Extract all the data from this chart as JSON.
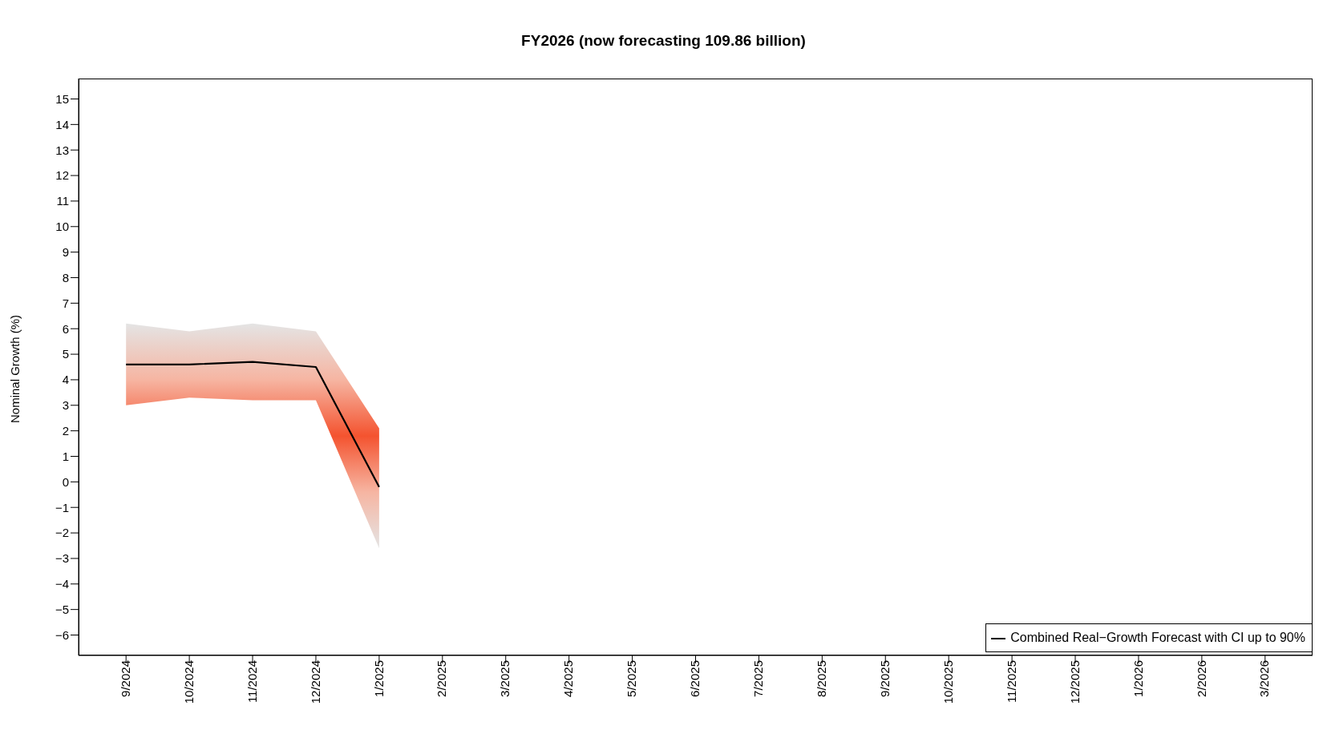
{
  "chart_data": {
    "type": "line",
    "title": "FY2026 (now forecasting 109.86 billion)",
    "ylabel": "Nominal Growth (%)",
    "categories": [
      "9/2024",
      "10/2024",
      "11/2024",
      "12/2024",
      "1/2025",
      "2/2025",
      "3/2025",
      "4/2025",
      "5/2025",
      "6/2025",
      "7/2025",
      "8/2025",
      "9/2025",
      "10/2025",
      "11/2025",
      "12/2025",
      "1/2026",
      "2/2026",
      "3/2026"
    ],
    "series": [
      {
        "name": "Combined Real−Growth Forecast with CI up to 90%",
        "color": "#000000",
        "values": [
          4.6,
          4.6,
          4.7,
          4.5,
          -0.2,
          null,
          null,
          null,
          null,
          null,
          null,
          null,
          null,
          null,
          null,
          null,
          null,
          null,
          null
        ],
        "lower": [
          3.0,
          3.3,
          3.2,
          3.2,
          -2.6,
          null,
          null,
          null,
          null,
          null,
          null,
          null,
          null,
          null,
          null,
          null,
          null,
          null,
          null
        ],
        "upper": [
          6.2,
          5.9,
          6.2,
          5.9,
          2.1,
          null,
          null,
          null,
          null,
          null,
          null,
          null,
          null,
          null,
          null,
          null,
          null,
          null,
          null
        ]
      }
    ],
    "ylim": [
      -6.8,
      15.8
    ],
    "yticks": [
      -6,
      -5,
      -4,
      -3,
      -2,
      -1,
      0,
      1,
      2,
      3,
      4,
      5,
      6,
      7,
      8,
      9,
      10,
      11,
      12,
      13,
      14,
      15
    ],
    "grid": false,
    "legend": "bottom right",
    "marker": "none",
    "line_style": "solid"
  }
}
